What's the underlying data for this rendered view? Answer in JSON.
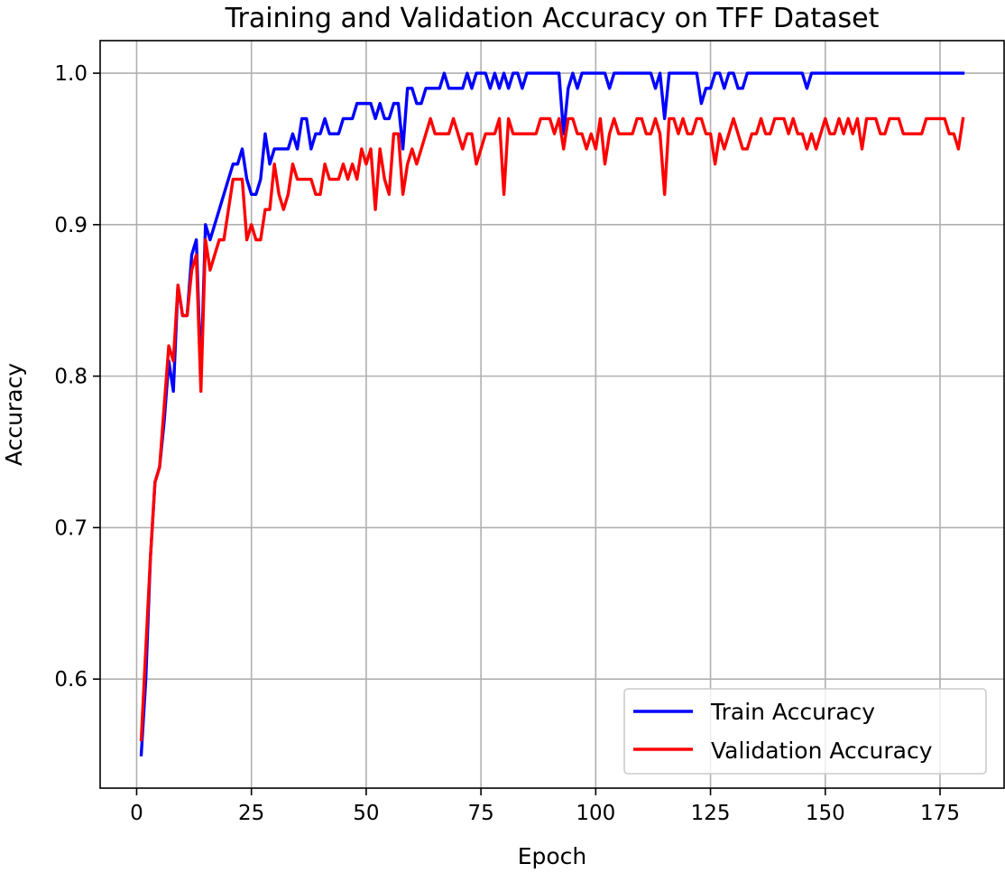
{
  "chart_data": {
    "type": "line",
    "title": "Training and Validation Accuracy on TFF Dataset",
    "xlabel": "Epoch",
    "ylabel": "Accuracy",
    "xlim": [
      -7.95,
      188.95
    ],
    "ylim": [
      0.528,
      1.0215
    ],
    "xticks": [
      0,
      25,
      50,
      75,
      100,
      125,
      150,
      175
    ],
    "xtick_labels": [
      "0",
      "25",
      "50",
      "75",
      "100",
      "125",
      "150",
      "175"
    ],
    "yticks": [
      0.6,
      0.7,
      0.8,
      0.9,
      1.0
    ],
    "ytick_labels": [
      "0.6",
      "0.7",
      "0.8",
      "0.9",
      "1.0"
    ],
    "grid": true,
    "legend": "lower-right",
    "x_start": 1,
    "series": [
      {
        "name": "Train Accuracy",
        "color": "#0000ff",
        "values": [
          0.55,
          0.6,
          0.68,
          0.73,
          0.74,
          0.77,
          0.81,
          0.79,
          0.86,
          0.84,
          0.84,
          0.88,
          0.89,
          0.8,
          0.9,
          0.89,
          0.9,
          0.91,
          0.92,
          0.93,
          0.94,
          0.94,
          0.95,
          0.93,
          0.92,
          0.92,
          0.93,
          0.96,
          0.94,
          0.95,
          0.95,
          0.95,
          0.95,
          0.96,
          0.95,
          0.97,
          0.97,
          0.95,
          0.96,
          0.96,
          0.97,
          0.96,
          0.96,
          0.96,
          0.97,
          0.97,
          0.97,
          0.98,
          0.98,
          0.98,
          0.98,
          0.97,
          0.98,
          0.97,
          0.97,
          0.98,
          0.98,
          0.95,
          0.99,
          0.99,
          0.98,
          0.98,
          0.99,
          0.99,
          0.99,
          0.99,
          1.0,
          0.99,
          0.99,
          0.99,
          0.99,
          1.0,
          0.99,
          1.0,
          1.0,
          1.0,
          0.99,
          1.0,
          0.99,
          1.0,
          0.99,
          1.0,
          1.0,
          0.99,
          1.0,
          1.0,
          1.0,
          1.0,
          1.0,
          1.0,
          1.0,
          1.0,
          0.96,
          0.99,
          1.0,
          0.99,
          1.0,
          1.0,
          1.0,
          1.0,
          1.0,
          1.0,
          0.99,
          1.0,
          1.0,
          1.0,
          1.0,
          1.0,
          1.0,
          1.0,
          1.0,
          1.0,
          0.99,
          1.0,
          0.97,
          1.0,
          1.0,
          1.0,
          1.0,
          1.0,
          1.0,
          1.0,
          0.98,
          0.99,
          0.99,
          1.0,
          1.0,
          0.99,
          1.0,
          1.0,
          0.99,
          0.99,
          1.0,
          1.0,
          1.0,
          1.0,
          1.0,
          1.0,
          1.0,
          1.0,
          1.0,
          1.0,
          1.0,
          1.0,
          1.0,
          0.99,
          1.0,
          1.0,
          1.0,
          1.0,
          1.0,
          1.0,
          1.0,
          1.0,
          1.0,
          1.0,
          1.0,
          1.0,
          1.0,
          1.0,
          1.0,
          1.0,
          1.0,
          1.0,
          1.0,
          1.0,
          1.0,
          1.0,
          1.0,
          1.0,
          1.0,
          1.0,
          1.0,
          1.0,
          1.0,
          1.0,
          1.0,
          1.0,
          1.0,
          1.0
        ]
      },
      {
        "name": "Validation Accuracy",
        "color": "#ff0000",
        "values": [
          0.56,
          0.62,
          0.68,
          0.73,
          0.74,
          0.78,
          0.82,
          0.81,
          0.86,
          0.84,
          0.84,
          0.87,
          0.88,
          0.79,
          0.89,
          0.87,
          0.88,
          0.89,
          0.89,
          0.91,
          0.93,
          0.93,
          0.93,
          0.89,
          0.9,
          0.89,
          0.89,
          0.91,
          0.91,
          0.94,
          0.92,
          0.91,
          0.92,
          0.94,
          0.93,
          0.93,
          0.93,
          0.93,
          0.92,
          0.92,
          0.94,
          0.93,
          0.93,
          0.93,
          0.94,
          0.93,
          0.94,
          0.93,
          0.95,
          0.94,
          0.95,
          0.91,
          0.95,
          0.93,
          0.92,
          0.96,
          0.96,
          0.92,
          0.94,
          0.95,
          0.94,
          0.95,
          0.96,
          0.97,
          0.96,
          0.96,
          0.96,
          0.96,
          0.97,
          0.96,
          0.95,
          0.96,
          0.96,
          0.94,
          0.95,
          0.96,
          0.96,
          0.96,
          0.97,
          0.92,
          0.97,
          0.96,
          0.96,
          0.96,
          0.96,
          0.96,
          0.96,
          0.97,
          0.97,
          0.97,
          0.96,
          0.97,
          0.95,
          0.97,
          0.97,
          0.96,
          0.96,
          0.95,
          0.96,
          0.95,
          0.97,
          0.94,
          0.96,
          0.97,
          0.96,
          0.96,
          0.96,
          0.96,
          0.97,
          0.97,
          0.96,
          0.96,
          0.97,
          0.96,
          0.92,
          0.97,
          0.97,
          0.96,
          0.97,
          0.96,
          0.96,
          0.97,
          0.97,
          0.96,
          0.96,
          0.94,
          0.96,
          0.95,
          0.96,
          0.97,
          0.96,
          0.95,
          0.95,
          0.96,
          0.96,
          0.97,
          0.96,
          0.96,
          0.97,
          0.97,
          0.97,
          0.96,
          0.97,
          0.96,
          0.96,
          0.95,
          0.96,
          0.95,
          0.96,
          0.97,
          0.96,
          0.96,
          0.97,
          0.96,
          0.97,
          0.96,
          0.97,
          0.95,
          0.97,
          0.97,
          0.97,
          0.96,
          0.96,
          0.97,
          0.97,
          0.97,
          0.96,
          0.96,
          0.96,
          0.96,
          0.96,
          0.97,
          0.97,
          0.97,
          0.97,
          0.97,
          0.96,
          0.96,
          0.95,
          0.97
        ]
      }
    ]
  }
}
